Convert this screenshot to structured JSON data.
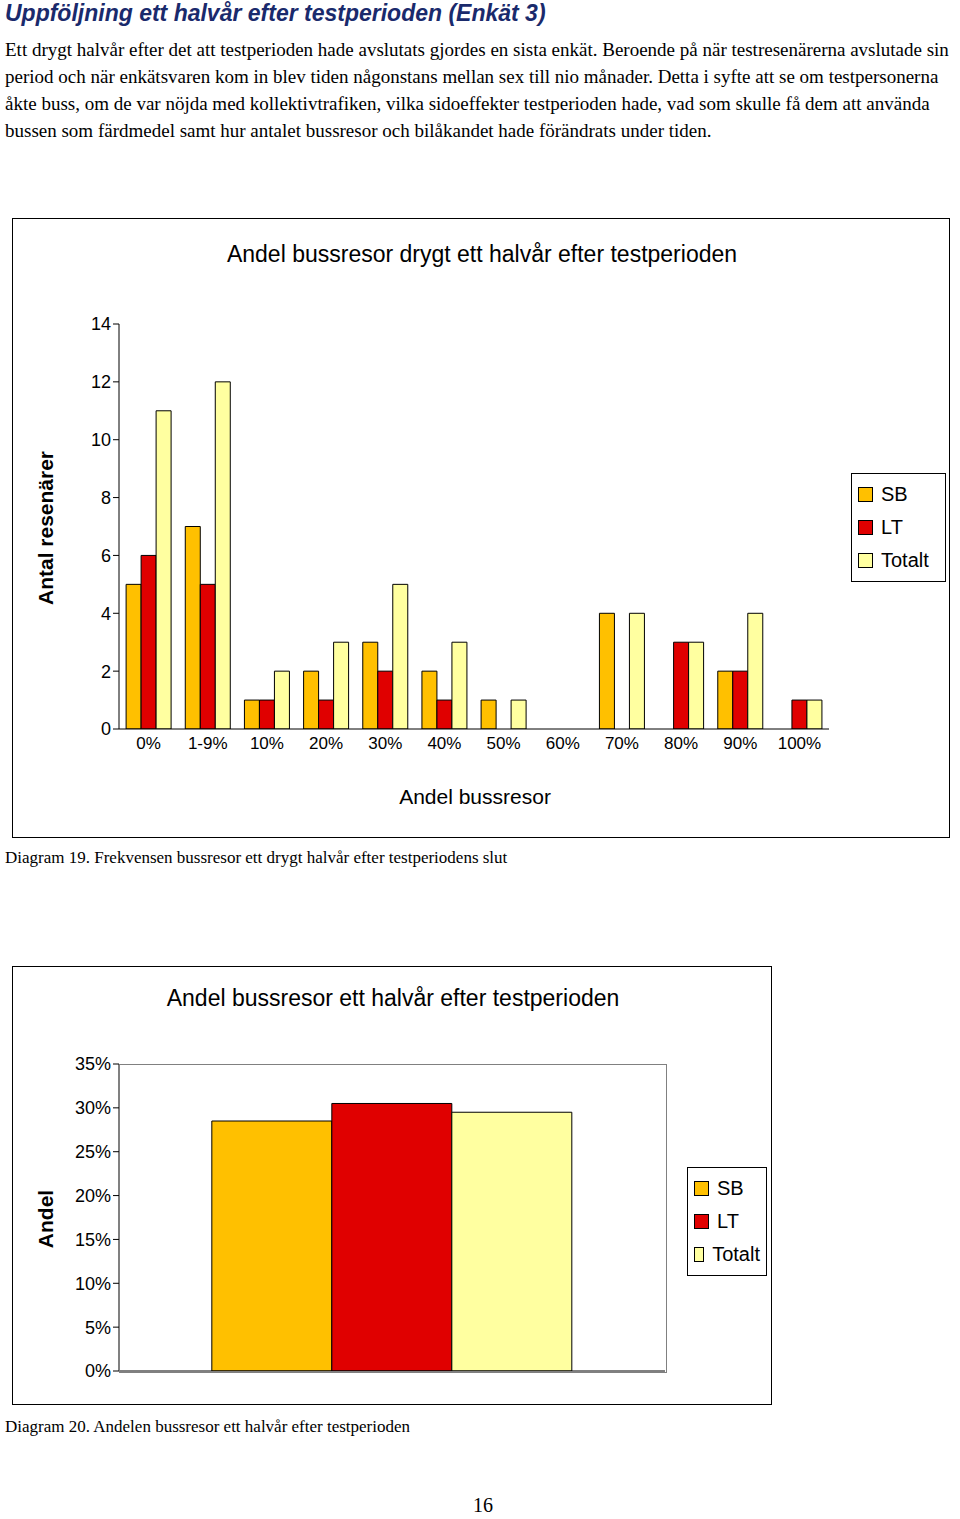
{
  "heading": "Uppföljning ett halvår efter testperioden (Enkät 3)",
  "paragraph": "Ett drygt halvår efter det att testperioden hade avslutats gjordes en sista enkät. Beroende på när testresenärerna avslutade sin period och när enkätsvaren kom in blev tiden någonstans mellan sex till nio månader. Detta i syfte att se om testpersonerna åkte buss, om de var nöjda med kollektivtrafiken, vilka sidoeffekter testperioden hade, vad som skulle få dem att använda bussen som färdmedel samt hur antalet bussresor och bilåkandet hade förändrats under tiden.",
  "chart_data": [
    {
      "type": "bar",
      "title": "Andel bussresor drygt ett halvår efter testperioden",
      "x_label": "Andel bussresor",
      "y_label": "Antal resenärer",
      "categories": [
        "0%",
        "1-9%",
        "10%",
        "20%",
        "30%",
        "40%",
        "50%",
        "60%",
        "70%",
        "80%",
        "90%",
        "100%"
      ],
      "series": [
        {
          "name": "SB",
          "color": "#ffc000",
          "values": [
            5,
            7,
            1,
            2,
            3,
            2,
            1,
            0,
            4,
            0,
            2,
            0
          ]
        },
        {
          "name": "LT",
          "color": "#e00000",
          "values": [
            6,
            5,
            1,
            1,
            2,
            1,
            0,
            0,
            0,
            3,
            2,
            1
          ]
        },
        {
          "name": "Totalt",
          "color": "#ffffa0",
          "values": [
            11,
            12,
            2,
            3,
            5,
            3,
            1,
            0,
            4,
            3,
            4,
            1
          ]
        }
      ],
      "ylim": [
        0,
        14
      ],
      "yticks": [
        0,
        2,
        4,
        6,
        8,
        10,
        12,
        14
      ],
      "grid": false,
      "legend": "right"
    },
    {
      "type": "bar",
      "title": "Andel bussresor ett halvår efter testperioden",
      "y_label": "Andel",
      "categories": [
        null
      ],
      "series": [
        {
          "name": "SB",
          "color": "#ffc000",
          "values": [
            28.5
          ]
        },
        {
          "name": "LT",
          "color": "#e00000",
          "values": [
            30.5
          ]
        },
        {
          "name": "Totalt",
          "color": "#ffffa0",
          "values": [
            29.5
          ]
        }
      ],
      "ylim": [
        0,
        35
      ],
      "yticks": [
        {
          "value": 0,
          "label": "0%"
        },
        {
          "value": 5,
          "label": "5%"
        },
        {
          "value": 10,
          "label": "10%"
        },
        {
          "value": 15,
          "label": "15%"
        },
        {
          "value": 20,
          "label": "20%"
        },
        {
          "value": 25,
          "label": "25%"
        },
        {
          "value": 30,
          "label": "30%"
        },
        {
          "value": 35,
          "label": "35%"
        }
      ],
      "grid": false,
      "legend": "right"
    }
  ],
  "captions": [
    "Diagram 19. Frekvensen bussresor ett drygt halvår efter testperiodens slut",
    "Diagram 20. Andelen bussresor ett halvår efter testperioden"
  ],
  "page_number": "16"
}
